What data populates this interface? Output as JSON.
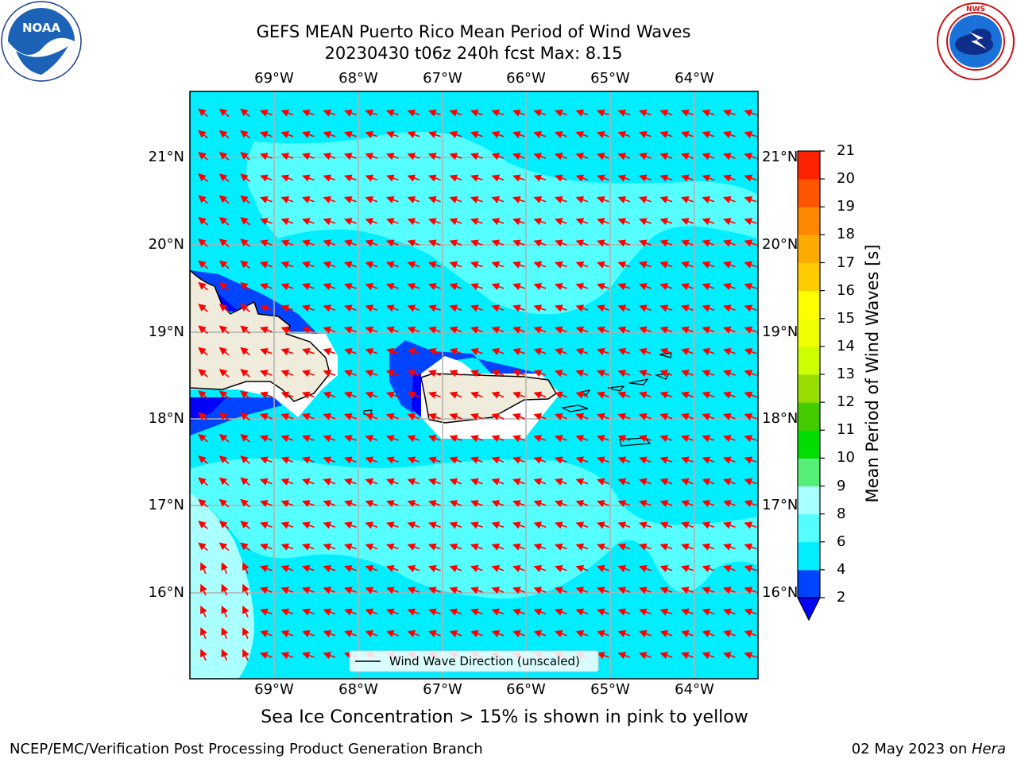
{
  "title": {
    "line1": "GEFS MEAN Puerto Rico Mean Period of Wind Waves",
    "line2": "20230430 t06z 240h fcst   Max: 8.15"
  },
  "logos": {
    "left_text": "NOAA",
    "left_ring_text": "NATIONAL OCEANIC AND ATMOSPHERIC ADMINISTRATION · U.S. DEPARTMENT OF COMMERCE",
    "right_ring_text": "NATIONAL WEATHER SERVICE"
  },
  "map": {
    "lon_labels": [
      "69°W",
      "68°W",
      "67°W",
      "66°W",
      "65°W",
      "64°W"
    ],
    "lat_labels": [
      "21°N",
      "20°N",
      "19°N",
      "18°N",
      "17°N",
      "16°N"
    ],
    "legend_label": "Wind Wave Direction (unscaled)",
    "arrow_color": "#ff0000",
    "land_color": "#efecdc"
  },
  "colorbar": {
    "label": "Mean Period of Wind Waves [s]",
    "ticks": [
      "2",
      "4",
      "6",
      "8",
      "9",
      "10",
      "11",
      "12",
      "13",
      "14",
      "15",
      "16",
      "17",
      "18",
      "19",
      "20",
      "21"
    ],
    "colors": [
      "#0044ff",
      "#00eeff",
      "#55ffff",
      "#aaffff",
      "#55ee77",
      "#00dd00",
      "#44cc00",
      "#99dd00",
      "#ccff00",
      "#eeff00",
      "#ffff00",
      "#ffcc00",
      "#ffaa00",
      "#ff8800",
      "#ff5500",
      "#ff2200",
      "#ff0000"
    ],
    "under_color": "#0000ff"
  },
  "note": "Sea Ice Concentration > 15% is shown in pink to yellow",
  "footer": {
    "left": "NCEP/EMC/Verification Post Processing Product Generation Branch",
    "date": "02 May 2023 on ",
    "host": "Hera"
  }
}
